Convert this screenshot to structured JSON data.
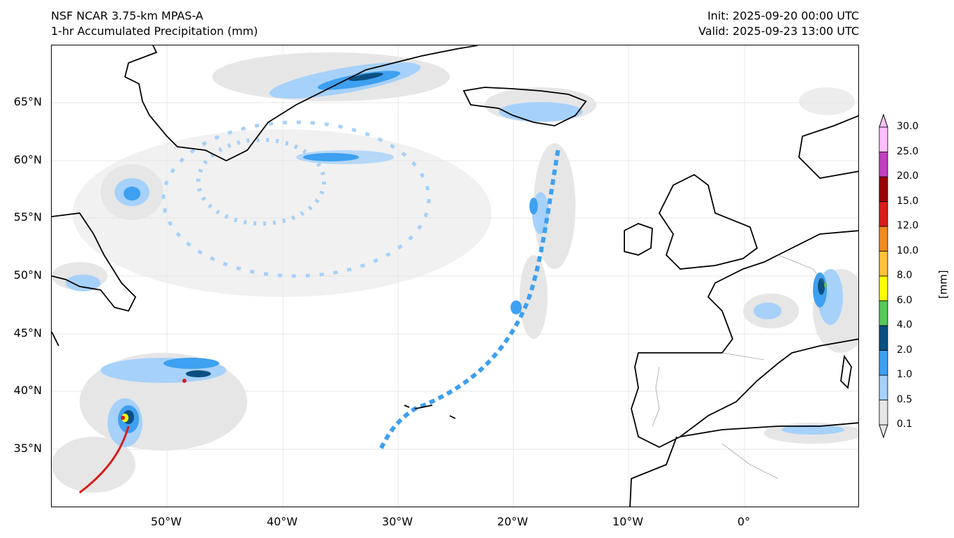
{
  "header": {
    "model": "NSF NCAR 3.75-km MPAS-A",
    "field": "1-hr Accumulated Precipitation (mm)",
    "init": "Init: 2025-09-20 00:00 UTC",
    "valid": "Valid: 2025-09-23 13:00 UTC"
  },
  "map": {
    "lon_range": [
      -60,
      10
    ],
    "lat_range": [
      30,
      70
    ],
    "lat_ticks": [
      "65°N",
      "60°N",
      "55°N",
      "50°N",
      "45°N",
      "40°N",
      "35°N"
    ],
    "lon_ticks": [
      "50°W",
      "40°W",
      "30°W",
      "20°W",
      "10°W",
      "0°"
    ],
    "gridlines": true
  },
  "colorbar": {
    "title": "[mm]",
    "levels": [
      "0.1",
      "0.5",
      "1.0",
      "2.0",
      "4.0",
      "6.0",
      "8.0",
      "10.0",
      "12.0",
      "15.0",
      "20.0",
      "25.0",
      "30.0"
    ],
    "colors": [
      "#e6e6e6",
      "#a6d1fa",
      "#3ea0f0",
      "#0a4f80",
      "#57c85a",
      "#ffff00",
      "#ffc23a",
      "#f08a22",
      "#d81c1c",
      "#9a0000",
      "#c040c0",
      "#ffc0ff"
    ]
  }
}
